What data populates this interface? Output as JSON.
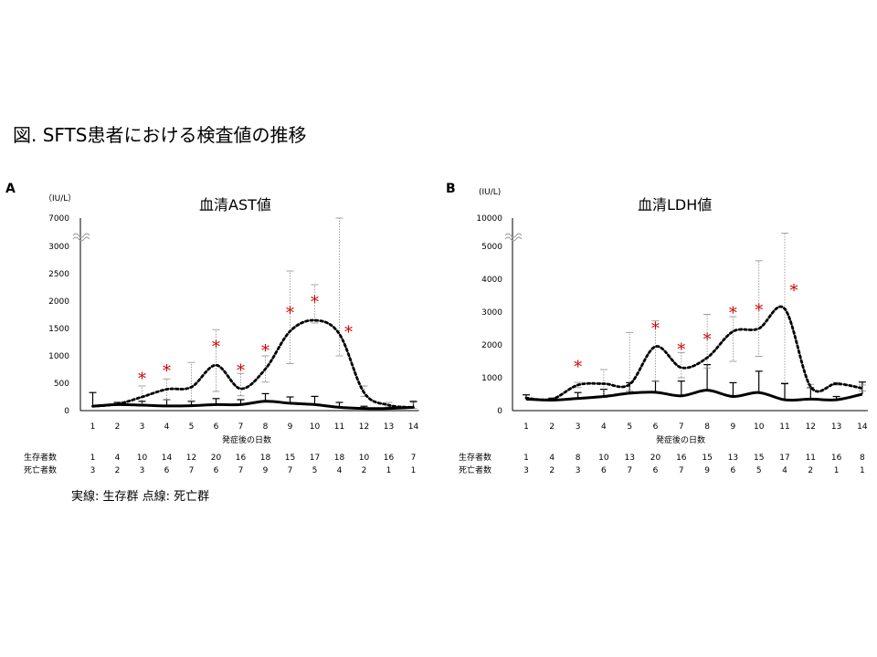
{
  "figure_title": "図. SFTS患者における検査値の推移",
  "note": "実線: 生存群 点線: 死亡群",
  "chart_data": [
    {
      "panel": "A",
      "type": "line",
      "title": "血清AST値",
      "unit": "（IU/L）",
      "xlabel": "発症後の日数",
      "x": [
        1,
        2,
        3,
        4,
        5,
        6,
        7,
        8,
        9,
        10,
        11,
        12,
        13,
        14
      ],
      "y_ticks": [
        "0",
        "500",
        "1000",
        "1500",
        "2000",
        "2500",
        "3000",
        "7000"
      ],
      "ylim": [
        0,
        3000
      ],
      "axis_break": "3000–7000",
      "series": [
        {
          "style": "solid",
          "values": [
            80,
            110,
            100,
            85,
            90,
            110,
            110,
            170,
            135,
            110,
            60,
            40,
            40,
            60
          ],
          "err_upper": [
            330,
            150,
            170,
            200,
            170,
            220,
            200,
            310,
            250,
            260,
            150,
            80,
            60,
            170
          ]
        },
        {
          "style": "dotted",
          "values": [
            80,
            120,
            250,
            390,
            430,
            830,
            400,
            760,
            1450,
            1650,
            1400,
            330,
            100,
            60
          ],
          "err_upper": [
            null,
            null,
            450,
            580,
            880,
            1480,
            680,
            1000,
            2550,
            2300,
            7000,
            450,
            150,
            150
          ],
          "err_lower": [
            null,
            null,
            100,
            200,
            180,
            350,
            270,
            520,
            860,
            1600,
            1000,
            260,
            60,
            40
          ]
        }
      ],
      "significant": [
        3,
        4,
        6,
        7,
        8,
        9,
        10,
        11
      ],
      "counts": {
        "survivors_label": "生存者数",
        "deaths_label": "死亡者数",
        "survivors": [
          "1",
          "4",
          "10",
          "14",
          "12",
          "20",
          "16",
          "18",
          "15",
          "17",
          "18",
          "10",
          "16",
          "7"
        ],
        "deaths": [
          "3",
          "2",
          "3",
          "6",
          "7",
          "6",
          "7",
          "9",
          "7",
          "5",
          "4",
          "2",
          "1",
          "1"
        ]
      }
    },
    {
      "panel": "B",
      "type": "line",
      "title": "血清LDH値",
      "unit": "(IU/L)",
      "xlabel": "発症後の日数",
      "x": [
        1,
        2,
        3,
        4,
        5,
        6,
        7,
        8,
        9,
        10,
        11,
        12,
        13,
        14
      ],
      "y_ticks": [
        "0",
        "1000",
        "2000",
        "3000",
        "4000",
        "5000",
        "10000"
      ],
      "ylim": [
        0,
        5000
      ],
      "axis_break": "5000–10000",
      "series": [
        {
          "style": "solid",
          "values": [
            350,
            320,
            370,
            430,
            530,
            560,
            450,
            620,
            430,
            550,
            330,
            350,
            330,
            500
          ],
          "err_upper": [
            480,
            380,
            550,
            650,
            850,
            900,
            900,
            1400,
            850,
            1200,
            820,
            700,
            430,
            870
          ]
        },
        {
          "style": "dotted",
          "values": [
            380,
            350,
            780,
            820,
            800,
            1950,
            1310,
            1610,
            2410,
            2500,
            3100,
            730,
            820,
            680
          ],
          "err_upper": [
            null,
            null,
            860,
            1250,
            2380,
            2730,
            1770,
            2930,
            2860,
            4560,
            5600,
            800,
            860,
            780
          ],
          "err_lower": [
            null,
            null,
            700,
            400,
            600,
            900,
            1000,
            1300,
            1500,
            1650,
            850,
            700,
            780,
            600
          ]
        }
      ],
      "significant": [
        3,
        6,
        7,
        8,
        9,
        10,
        11
      ],
      "counts": {
        "survivors_label": "生存者数",
        "deaths_label": "死亡者数",
        "survivors": [
          "1",
          "4",
          "8",
          "10",
          "13",
          "20",
          "16",
          "15",
          "13",
          "15",
          "17",
          "11",
          "16",
          "8"
        ],
        "deaths": [
          "3",
          "2",
          "3",
          "6",
          "7",
          "6",
          "7",
          "9",
          "6",
          "5",
          "4",
          "2",
          "1",
          "1"
        ]
      }
    }
  ]
}
